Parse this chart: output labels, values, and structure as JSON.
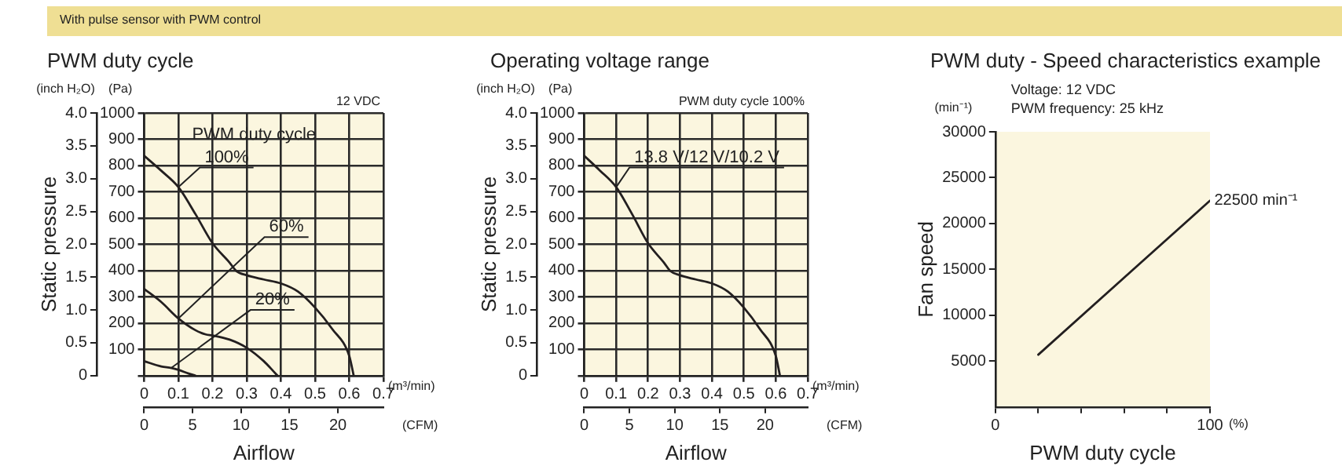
{
  "chart_data": [
    {
      "type": "line",
      "title": "PWM duty cycle",
      "subtitle": "With pulse sensor with PWM control",
      "xlabel": "Airflow",
      "ylabel": "Static pressure",
      "xlim": [
        0,
        0.7
      ],
      "xticks": [
        0,
        0.1,
        0.2,
        0.3,
        0.4,
        0.5,
        0.6,
        0.7
      ],
      "x2lim": [
        0,
        24.7
      ],
      "x2ticks": [
        0,
        5,
        10,
        15,
        20
      ],
      "ylim": [
        0,
        4
      ],
      "yticks": [
        0,
        0.5,
        {
          "value": 1,
          "label": "1.0"
        },
        1.5,
        {
          "value": 2,
          "label": "2.0"
        },
        2.5,
        {
          "value": 3,
          "label": "3.0"
        },
        3.5,
        {
          "value": 4,
          "label": "4.0"
        }
      ],
      "y2lim": [
        0,
        1000
      ],
      "y2ticks": [
        {
          "value": 0,
          "label": null
        },
        100,
        200,
        300,
        400,
        500,
        600,
        700,
        800,
        900,
        1000
      ],
      "grid": true,
      "series": [
        {
          "color": "#231f20",
          "axis": "y2",
          "x": [
            0,
            0.05,
            0.1,
            0.15,
            0.2,
            0.25,
            0.27,
            0.3,
            0.35,
            0.4,
            0.45,
            0.5,
            0.55,
            0.6,
            0.613
          ],
          "values": [
            837,
            780,
            718,
            615,
            504,
            430,
            398,
            382,
            366,
            351,
            320,
            259,
            178,
            75,
            0
          ]
        },
        {
          "color": "#231f20",
          "axis": "y2",
          "x": [
            0,
            0.05,
            0.1,
            0.15,
            0.18,
            0.2,
            0.25,
            0.3,
            0.35,
            0.38,
            0.39
          ],
          "values": [
            330,
            280,
            218,
            173,
            157,
            153,
            137,
            106,
            55,
            14,
            0
          ]
        },
        {
          "color": "#231f20",
          "axis": "y2",
          "x": [
            0,
            0.05,
            0.08,
            0.1,
            0.13,
            0.15
          ],
          "values": [
            55,
            35,
            29,
            22,
            8,
            0
          ]
        }
      ],
      "annotations": [
        "(inch H₂O)",
        "(Pa)",
        "(m³/min)",
        "(CFM)",
        "12 VDC",
        "PWM duty cycle",
        {
          "text": "100%",
          "x": 0.1,
          "y": 2.87
        },
        {
          "text": "60%",
          "x": 0.1,
          "y": 0.87
        },
        {
          "text": "20%",
          "x": 0.08,
          "y": 0.12
        }
      ]
    },
    {
      "type": "line",
      "title": "Operating voltage range",
      "xlabel": "Airflow",
      "ylabel": "Static pressure",
      "xlim": [
        0,
        0.7
      ],
      "xticks": [
        0,
        0.1,
        0.2,
        0.3,
        0.4,
        0.5,
        0.6,
        0.7
      ],
      "x2lim": [
        0,
        24.7
      ],
      "x2ticks": [
        0,
        5,
        10,
        15,
        20
      ],
      "ylim": [
        0,
        4
      ],
      "yticks": [
        0,
        0.5,
        {
          "value": 1,
          "label": "1.0"
        },
        1.5,
        {
          "value": 2,
          "label": "2.0"
        },
        2.5,
        {
          "value": 3,
          "label": "3.0"
        },
        3.5,
        {
          "value": 4,
          "label": "4.0"
        }
      ],
      "y2lim": [
        0,
        1000
      ],
      "y2ticks": [
        {
          "value": 0,
          "label": null
        },
        100,
        200,
        300,
        400,
        500,
        600,
        700,
        800,
        900,
        1000
      ],
      "grid": true,
      "series": [
        {
          "color": "#231f20",
          "axis": "y2",
          "x": [
            0,
            0.05,
            0.1,
            0.15,
            0.2,
            0.25,
            0.27,
            0.3,
            0.35,
            0.4,
            0.45,
            0.5,
            0.55,
            0.6,
            0.613
          ],
          "values": [
            837,
            780,
            718,
            615,
            504,
            430,
            398,
            382,
            366,
            351,
            320,
            259,
            178,
            75,
            0
          ]
        }
      ],
      "annotations": [
        "(inch H₂O)",
        "(Pa)",
        "(m³/min)",
        "(CFM)",
        "PWM duty cycle 100%",
        {
          "text": "13.8 V/12 V/10.2 V",
          "x": 0.1,
          "y": 2.87
        }
      ]
    },
    {
      "type": "line",
      "title": "PWM duty - Speed characteristics example",
      "xlabel": "PWM duty cycle",
      "ylabel": "Fan speed",
      "xlim": [
        0,
        100
      ],
      "xticks": [
        0,
        {
          "value": 20,
          "label": null
        },
        {
          "value": 40,
          "label": null
        },
        {
          "value": 60,
          "label": null
        },
        {
          "value": 80,
          "label": null
        },
        100
      ],
      "ylim": [
        0,
        30000
      ],
      "yticks": [
        5000,
        10000,
        15000,
        20000,
        25000,
        30000
      ],
      "series": [
        {
          "color": "#231f20",
          "x": [
            20,
            100
          ],
          "values": [
            5700,
            22500
          ]
        }
      ],
      "annotations": [
        "(min⁻¹)",
        "(%)",
        "Voltage: 12 VDC",
        "PWM frequency: 25 kHz",
        {
          "text": "22500 min⁻¹",
          "x": 100,
          "y": 22500
        }
      ]
    }
  ]
}
